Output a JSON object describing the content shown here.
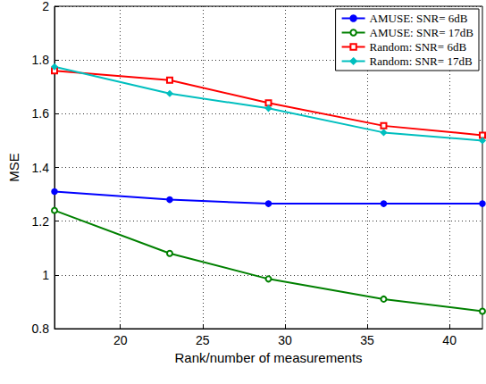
{
  "chart_data": {
    "type": "line",
    "x_label": "Rank/number of measurements",
    "y_label": "MSE",
    "x": [
      16,
      23,
      29,
      36,
      42
    ],
    "xlim": [
      16,
      42
    ],
    "xticks": [
      20,
      25,
      30,
      35,
      40
    ],
    "ylim": [
      0.8,
      2
    ],
    "yticks": [
      0.8,
      1,
      1.2,
      1.4,
      1.6,
      1.8,
      2
    ],
    "grid": true,
    "legend": "upper right",
    "series": [
      {
        "name": "AMUSE: SNR= 6dB",
        "color": "#0000ff",
        "marker": "circle",
        "line_style": "solid",
        "values": [
          1.31,
          1.28,
          1.265,
          1.265,
          1.265
        ]
      },
      {
        "name": "AMUSE: SNR= 17dB",
        "color": "#008000",
        "marker": "open_circle",
        "line_style": "solid",
        "values": [
          1.24,
          1.08,
          0.985,
          0.91,
          0.865
        ]
      },
      {
        "name": "Random: SNR= 6dB",
        "color": "#ff0000",
        "marker": "open_square",
        "line_style": "solid",
        "values": [
          1.76,
          1.725,
          1.64,
          1.555,
          1.52
        ]
      },
      {
        "name": "Random: SNR= 17dB",
        "color": "#00bfbf",
        "marker": "diamond",
        "line_style": "solid",
        "values": [
          1.775,
          1.675,
          1.62,
          1.53,
          1.5
        ]
      }
    ]
  }
}
